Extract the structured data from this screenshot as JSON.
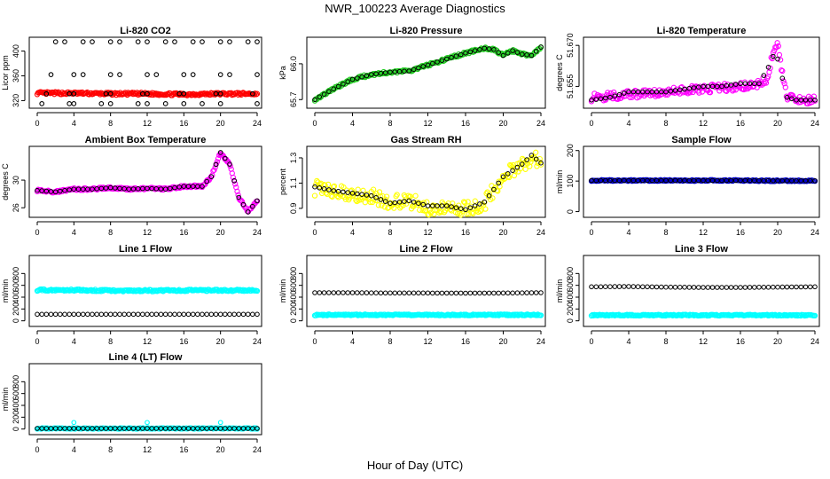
{
  "figure": {
    "title": "NWR_100223  Average Diagnostics",
    "xlabel": "Hour of Day (UTC)"
  },
  "chart_data": [
    {
      "type": "scatter",
      "title": "Li-820 CO2",
      "ylabel": "Licor ppm",
      "xlim": [
        0,
        24
      ],
      "ylim": [
        312,
        418
      ],
      "xticks": [
        "0",
        "4",
        "8",
        "12",
        "16",
        "20",
        "24"
      ],
      "yticks": [
        320,
        360,
        400
      ],
      "ytick_labels": [
        "320",
        "360",
        "400"
      ],
      "series": [
        {
          "name": "red",
          "color": "#ff0000",
          "style": "band",
          "x": [
            0,
            4,
            8,
            12,
            16,
            20,
            24
          ],
          "values": [
            332,
            332,
            331,
            331,
            330,
            331,
            331
          ],
          "spread": 2
        },
        {
          "name": "ref-415",
          "color": "#000000",
          "style": "points",
          "x": [
            2,
            3,
            5,
            6,
            8,
            9,
            11,
            12,
            14,
            15,
            17,
            18,
            20,
            21,
            23,
            24
          ],
          "values": [
            415,
            415,
            415,
            415,
            415,
            415,
            415,
            415,
            415,
            415,
            415,
            415,
            415,
            415,
            415,
            415
          ]
        },
        {
          "name": "ref-362",
          "color": "#000000",
          "style": "points",
          "x": [
            1.5,
            4,
            5,
            8,
            9,
            12,
            13,
            16,
            17,
            20,
            21,
            24
          ],
          "values": [
            362,
            362,
            362,
            362,
            362,
            362,
            362,
            362,
            362,
            362,
            362,
            362
          ]
        },
        {
          "name": "ref-331",
          "color": "#000000",
          "style": "points",
          "x": [
            1,
            3.5,
            4,
            7.5,
            8,
            11.5,
            12,
            15.5,
            16,
            19.5,
            20,
            23.5
          ],
          "values": [
            331,
            331,
            331,
            331,
            331,
            331,
            331,
            331,
            331,
            331,
            331,
            331
          ]
        },
        {
          "name": "ref-315",
          "color": "#000000",
          "style": "points",
          "x": [
            0.5,
            3.5,
            4,
            7,
            8,
            11,
            12,
            14,
            16,
            18,
            20,
            24
          ],
          "values": [
            315,
            315,
            315,
            315,
            315,
            315,
            315,
            315,
            315,
            315,
            315,
            315
          ]
        }
      ]
    },
    {
      "type": "scatter",
      "title": "Li-820 Pressure",
      "ylabel": "kPa",
      "xlim": [
        0,
        24
      ],
      "ylim": [
        65.65,
        66.2
      ],
      "xticks": [
        "0",
        "4",
        "8",
        "12",
        "16",
        "20",
        "24"
      ],
      "yticks": [
        65.7,
        66.0
      ],
      "ytick_labels": [
        "65.7",
        "66.0"
      ],
      "series": [
        {
          "name": "green",
          "color": "#22cc22",
          "style": "band",
          "x": [
            0,
            2,
            4,
            6,
            8,
            10,
            12,
            14,
            16,
            18,
            19,
            20,
            21,
            22,
            23,
            24
          ],
          "values": [
            65.7,
            65.79,
            65.87,
            65.91,
            65.93,
            65.94,
            65.99,
            66.04,
            66.09,
            66.13,
            66.12,
            66.07,
            66.11,
            66.08,
            66.07,
            66.14
          ],
          "spread": 0.01
        },
        {
          "name": "black",
          "color": "#000000",
          "style": "points",
          "x": [
            0,
            2,
            4,
            6,
            8,
            10,
            12,
            14,
            16,
            18,
            19,
            20,
            21,
            22,
            23,
            24
          ],
          "values": [
            65.7,
            65.79,
            65.87,
            65.91,
            65.93,
            65.94,
            65.99,
            66.04,
            66.09,
            66.13,
            66.12,
            66.07,
            66.11,
            66.08,
            66.07,
            66.14
          ]
        }
      ]
    },
    {
      "type": "scatter",
      "title": "Li-820 Temperature",
      "ylabel": "degrees C",
      "xlim": [
        0,
        24
      ],
      "ylim": [
        51.648,
        51.672
      ],
      "xticks": [
        "0",
        "4",
        "8",
        "12",
        "16",
        "20",
        "24"
      ],
      "yticks": [
        51.655,
        51.67
      ],
      "ytick_labels": [
        "51.655",
        "51.670"
      ],
      "series": [
        {
          "name": "magenta",
          "color": "#ff00ff",
          "style": "band",
          "x": [
            0,
            4,
            8,
            12,
            16,
            18,
            19,
            19.5,
            20,
            20.5,
            21,
            22,
            23,
            24
          ],
          "values": [
            51.651,
            51.652,
            51.653,
            51.654,
            51.655,
            51.656,
            51.658,
            51.668,
            51.67,
            51.66,
            51.651,
            51.65,
            51.65,
            51.65
          ],
          "spread": 0.0015
        },
        {
          "name": "black",
          "color": "#000000",
          "style": "points",
          "x": [
            0,
            2,
            4,
            6,
            8,
            10,
            12,
            14,
            16,
            18,
            19,
            19.5,
            20,
            21,
            22,
            23,
            24
          ],
          "values": [
            51.65,
            51.651,
            51.653,
            51.653,
            51.653,
            51.654,
            51.655,
            51.655,
            51.656,
            51.656,
            51.662,
            51.666,
            51.665,
            51.651,
            51.65,
            51.65,
            51.65
          ]
        }
      ]
    },
    {
      "type": "scatter",
      "title": "Ambient Box Temperature",
      "ylabel": "degrees C",
      "xlim": [
        0,
        24
      ],
      "ylim": [
        25,
        34.5
      ],
      "xticks": [
        "0",
        "4",
        "8",
        "12",
        "16",
        "20",
        "24"
      ],
      "yticks": [
        26,
        30
      ],
      "ytick_labels": [
        "26",
        "30"
      ],
      "series": [
        {
          "name": "magenta",
          "color": "#ff00ff",
          "style": "band",
          "x": [
            0,
            2,
            4,
            6,
            8,
            10,
            12,
            14,
            16,
            18,
            19,
            20,
            21,
            22,
            23,
            24
          ],
          "values": [
            28.5,
            28.3,
            28.7,
            28.7,
            28.9,
            28.7,
            28.8,
            28.7,
            29.1,
            29.1,
            30.5,
            34.0,
            32.3,
            27.5,
            25.4,
            27.0
          ],
          "spread": 0.15
        },
        {
          "name": "black",
          "color": "#000000",
          "style": "points",
          "x": [
            0,
            2,
            4,
            6,
            8,
            10,
            12,
            14,
            16,
            18,
            19,
            20,
            21,
            22,
            23,
            24
          ],
          "values": [
            28.5,
            28.3,
            28.7,
            28.7,
            28.9,
            28.7,
            28.8,
            28.7,
            29.1,
            29.1,
            30.5,
            34.0,
            32.3,
            27.5,
            25.4,
            27.0
          ]
        }
      ]
    },
    {
      "type": "scatter",
      "title": "Gas Stream RH",
      "ylabel": "percent",
      "xlim": [
        0,
        24
      ],
      "ylim": [
        0.85,
        1.37
      ],
      "xticks": [
        "0",
        "4",
        "8",
        "12",
        "16",
        "20",
        "24"
      ],
      "yticks": [
        0.9,
        1.1,
        1.3
      ],
      "ytick_labels": [
        "0.9",
        "1.1",
        "1.3"
      ],
      "series": [
        {
          "name": "yellow",
          "color": "#ffff00",
          "style": "band",
          "x": [
            0,
            2,
            4,
            6,
            8,
            10,
            12,
            14,
            16,
            18,
            19,
            20,
            21,
            22,
            23,
            24
          ],
          "values": [
            1.06,
            1.04,
            1.02,
            1.0,
            0.95,
            0.96,
            0.9,
            0.92,
            0.9,
            0.94,
            1.05,
            1.15,
            1.2,
            1.25,
            1.3,
            1.27
          ],
          "spread": 0.06
        },
        {
          "name": "black",
          "color": "#000000",
          "style": "points",
          "x": [
            0,
            2,
            4,
            6,
            8,
            10,
            12,
            14,
            16,
            18,
            19,
            20,
            21,
            22,
            23,
            24
          ],
          "values": [
            1.07,
            1.04,
            1.02,
            1.0,
            0.94,
            0.96,
            0.92,
            0.92,
            0.89,
            0.95,
            1.05,
            1.15,
            1.2,
            1.25,
            1.32,
            1.26
          ]
        }
      ]
    },
    {
      "type": "scatter",
      "title": "Sample Flow",
      "ylabel": "ml/min",
      "xlim": [
        0,
        24
      ],
      "ylim": [
        -10,
        205
      ],
      "xticks": [
        "0",
        "4",
        "8",
        "12",
        "16",
        "20",
        "24"
      ],
      "yticks": [
        0,
        100,
        200
      ],
      "ytick_labels": [
        "0",
        "100",
        "200"
      ],
      "series": [
        {
          "name": "blue",
          "color": "#0000cc",
          "style": "band",
          "x": [
            0,
            4,
            8,
            12,
            16,
            20,
            24
          ],
          "values": [
            102,
            102,
            102,
            102,
            102,
            101,
            101
          ],
          "spread": 2
        },
        {
          "name": "black",
          "color": "#000000",
          "style": "points",
          "x": [
            0,
            4,
            8,
            12,
            16,
            20,
            24
          ],
          "values": [
            102,
            102,
            102,
            102,
            102,
            101,
            101
          ]
        }
      ]
    },
    {
      "type": "scatter",
      "title": "Line 1 Flow",
      "ylabel": "ml/min",
      "xlim": [
        0,
        24
      ],
      "ylim": [
        -50,
        1060
      ],
      "xticks": [
        "0",
        "4",
        "8",
        "12",
        "16",
        "20",
        "24"
      ],
      "yticks": [
        0,
        200,
        400,
        600,
        800
      ],
      "ytick_labels": [
        "0",
        "200",
        "400",
        "600",
        "800"
      ],
      "series": [
        {
          "name": "cyan",
          "color": "#00ffff",
          "style": "band",
          "x": [
            0,
            4,
            8,
            12,
            16,
            20,
            24
          ],
          "values": [
            520,
            520,
            510,
            510,
            515,
            515,
            515
          ],
          "spread": 15
        },
        {
          "name": "black",
          "color": "#000000",
          "style": "points",
          "x": [
            0,
            4,
            8,
            12,
            16,
            20,
            24
          ],
          "values": [
            110,
            110,
            110,
            110,
            110,
            110,
            110
          ]
        }
      ]
    },
    {
      "type": "scatter",
      "title": "Line 2 Flow",
      "ylabel": "ml/min",
      "xlim": [
        0,
        24
      ],
      "ylim": [
        -50,
        1060
      ],
      "xticks": [
        "0",
        "4",
        "8",
        "12",
        "16",
        "20",
        "24"
      ],
      "yticks": [
        0,
        200,
        400,
        600,
        800
      ],
      "ytick_labels": [
        "0",
        "200",
        "400",
        "600",
        "800"
      ],
      "series": [
        {
          "name": "cyan",
          "color": "#00ffff",
          "style": "band",
          "x": [
            0,
            4,
            8,
            12,
            16,
            20,
            24
          ],
          "values": [
            100,
            100,
            100,
            100,
            100,
            100,
            100
          ],
          "spread": 10
        },
        {
          "name": "black",
          "color": "#000000",
          "style": "points",
          "x": [
            0,
            4,
            8,
            12,
            16,
            20,
            24
          ],
          "values": [
            475,
            475,
            470,
            470,
            468,
            470,
            475
          ]
        }
      ]
    },
    {
      "type": "scatter",
      "title": "Line 3 Flow",
      "ylabel": "ml/min",
      "xlim": [
        0,
        24
      ],
      "ylim": [
        -50,
        1060
      ],
      "xticks": [
        "0",
        "4",
        "8",
        "12",
        "16",
        "20",
        "24"
      ],
      "yticks": [
        0,
        200,
        400,
        600,
        800
      ],
      "ytick_labels": [
        "0",
        "200",
        "400",
        "600",
        "800"
      ],
      "series": [
        {
          "name": "cyan",
          "color": "#00ffff",
          "style": "band",
          "x": [
            0,
            4,
            8,
            12,
            16,
            20,
            24
          ],
          "values": [
            95,
            95,
            95,
            95,
            95,
            95,
            95
          ],
          "spread": 10
        },
        {
          "name": "black",
          "color": "#000000",
          "style": "points",
          "x": [
            0,
            4,
            8,
            12,
            16,
            20,
            24
          ],
          "values": [
            575,
            580,
            570,
            565,
            565,
            570,
            575
          ]
        }
      ]
    },
    {
      "type": "scatter",
      "title": "Line 4 (LT) Flow",
      "ylabel": "ml/min",
      "xlim": [
        0,
        24
      ],
      "ylim": [
        -50,
        1060
      ],
      "xticks": [
        "0",
        "4",
        "8",
        "12",
        "16",
        "20",
        "24"
      ],
      "yticks": [
        0,
        200,
        400,
        600,
        800
      ],
      "ytick_labels": [
        "0",
        "200",
        "400",
        "600",
        "800"
      ],
      "series": [
        {
          "name": "cyan",
          "color": "#00ffff",
          "style": "band",
          "x": [
            0,
            4,
            8,
            12,
            16,
            20,
            24
          ],
          "values": [
            10,
            10,
            10,
            10,
            10,
            10,
            10
          ],
          "spread": 8
        },
        {
          "name": "black",
          "color": "#000000",
          "style": "points",
          "x": [
            0,
            4,
            8,
            12,
            16,
            20,
            24
          ],
          "values": [
            10,
            10,
            10,
            10,
            10,
            10,
            10
          ]
        },
        {
          "name": "cyan-spikes",
          "color": "#00ffff",
          "style": "points",
          "x": [
            4,
            12,
            20
          ],
          "values": [
            110,
            110,
            110
          ]
        }
      ]
    }
  ]
}
